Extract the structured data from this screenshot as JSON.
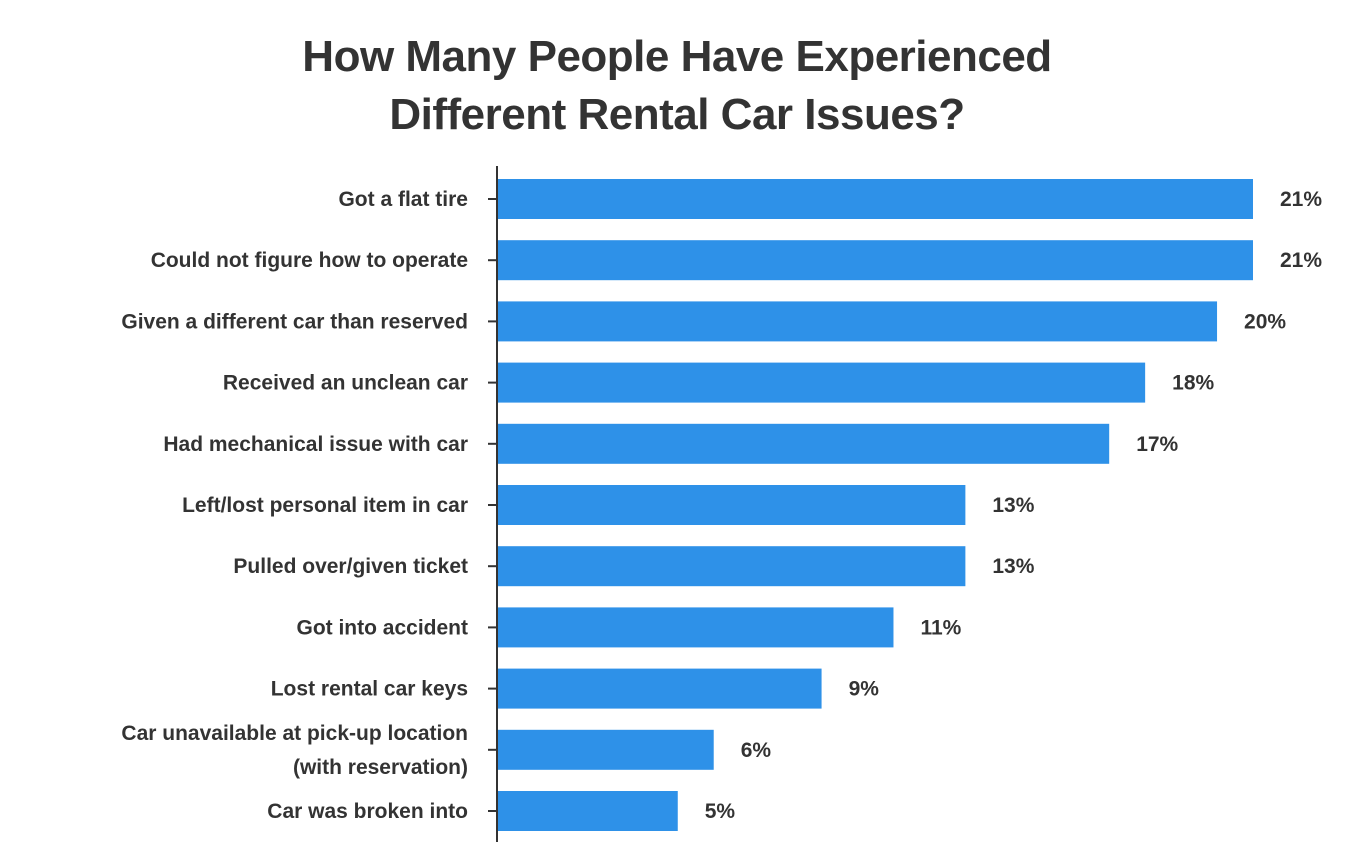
{
  "chart_data": {
    "type": "bar",
    "orientation": "horizontal",
    "title": [
      "How Many People Have Experienced",
      "Different Rental Car Issues?"
    ],
    "categories": [
      [
        "Got a flat tire"
      ],
      [
        "Could not figure how to operate"
      ],
      [
        "Given a different car than reserved"
      ],
      [
        "Received an unclean car"
      ],
      [
        "Had mechanical issue with car"
      ],
      [
        "Left/lost personal item in car"
      ],
      [
        "Pulled over/given ticket"
      ],
      [
        "Got into accident"
      ],
      [
        "Lost rental car keys"
      ],
      [
        "Car unavailable at pick-up location",
        "(with reservation)"
      ],
      [
        "Car was broken into"
      ]
    ],
    "values": [
      21,
      21,
      20,
      18,
      17,
      13,
      13,
      11,
      9,
      6,
      5
    ],
    "value_labels": [
      "21%",
      "21%",
      "20%",
      "18%",
      "17%",
      "13%",
      "13%",
      "11%",
      "9%",
      "6%",
      "5%"
    ],
    "xlim": [
      0,
      21
    ],
    "grid": false,
    "legend": "none",
    "bar_color": "#2e91e8",
    "axis_color": "#333333"
  }
}
